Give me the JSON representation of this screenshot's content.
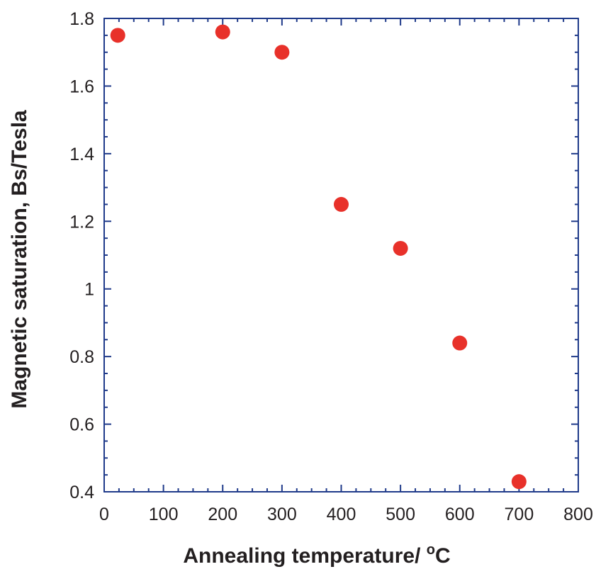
{
  "chart_data": {
    "type": "scatter",
    "title": "",
    "xlabel": "Annealing temperature/ ",
    "xlabel_sup": "o",
    "xlabel_unit": "C",
    "ylabel": "Magnetic saturation, Bs/Tesla",
    "xlim": [
      0,
      800
    ],
    "ylim": [
      0.4,
      1.8
    ],
    "x_ticks": [
      0,
      100,
      200,
      300,
      400,
      500,
      600,
      700,
      800
    ],
    "x_tick_labels": [
      "0",
      "100",
      "200",
      "300",
      "400",
      "500",
      "600",
      "700",
      "800"
    ],
    "y_ticks": [
      0.4,
      0.6,
      0.8,
      1.0,
      1.2,
      1.4,
      1.6,
      1.8
    ],
    "y_tick_labels": [
      "0.4",
      "0.6",
      "0.8",
      "1",
      "1.2",
      "1.4",
      "1.6",
      "1.8"
    ],
    "grid": false,
    "legend": "none",
    "series": [
      {
        "name": "Bs",
        "x": [
          23,
          200,
          300,
          400,
          500,
          600,
          700
        ],
        "y": [
          1.75,
          1.76,
          1.7,
          1.25,
          1.12,
          0.84,
          0.43
        ]
      }
    ],
    "colors": {
      "axis": "#1f3a8a",
      "marker": "#e8312a",
      "text": "#231f20"
    }
  }
}
